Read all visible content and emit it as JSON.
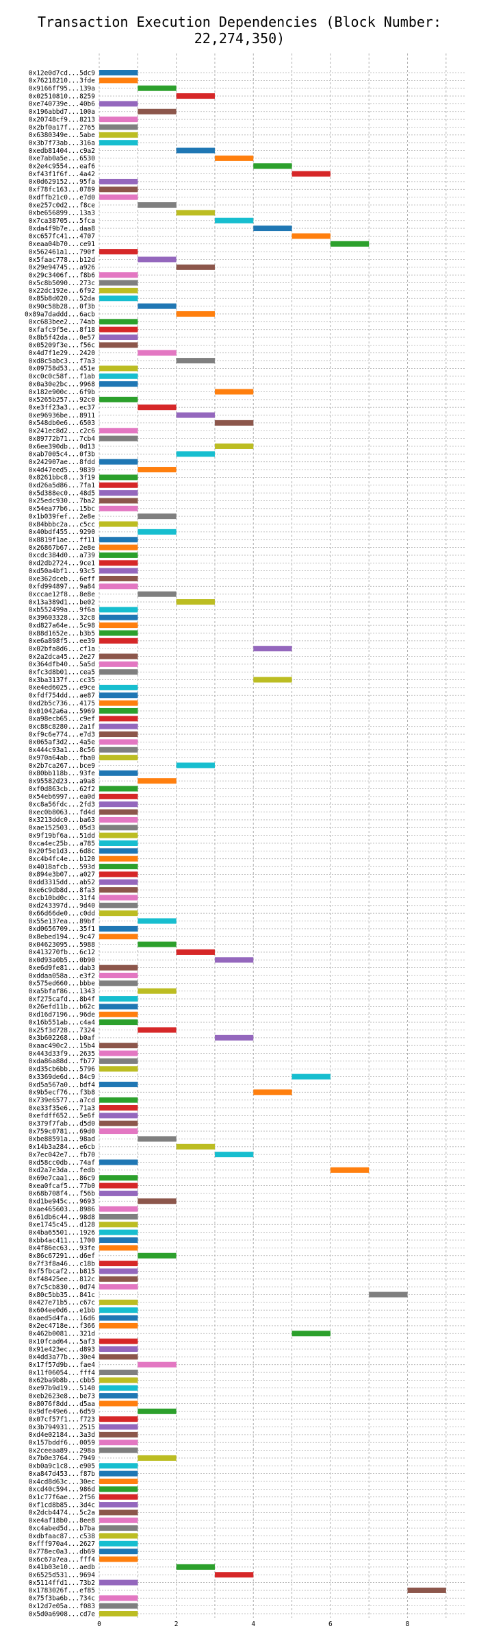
{
  "chart_data": {
    "type": "gantt",
    "title": "Transaction Execution Dependencies (Block Number: 22,274,350)",
    "xlabel": "",
    "ylabel": "",
    "xlim": [
      0,
      9.5
    ],
    "xticks": [
      0,
      2,
      4,
      6,
      8
    ],
    "grid": true,
    "bar_duration": 1,
    "palette": [
      "#1f77b4",
      "#ff7f0e",
      "#2ca02c",
      "#d62728",
      "#9467bd",
      "#8c564b",
      "#e377c2",
      "#7f7f7f",
      "#bcbd22",
      "#17becf"
    ],
    "transactions": [
      {
        "label": "0x12e0d7cd...5dc9",
        "start": 0
      },
      {
        "label": "0x76218210...3fde",
        "start": 0
      },
      {
        "label": "0x9166ff95...139a",
        "start": 1
      },
      {
        "label": "0x02510810...8259",
        "start": 2
      },
      {
        "label": "0xe740739e...40b6",
        "start": 0
      },
      {
        "label": "0x196abbd7...100a",
        "start": 1
      },
      {
        "label": "0x20748cf9...8213",
        "start": 0
      },
      {
        "label": "0x2bf0a17f...2765",
        "start": 0
      },
      {
        "label": "0x6380349e...5abe",
        "start": 0
      },
      {
        "label": "0x3b7f73ab...316a",
        "start": 0
      },
      {
        "label": "0xedb81404...c9a2",
        "start": 2
      },
      {
        "label": "0xe7ab0a5e...6530",
        "start": 3
      },
      {
        "label": "0x2e4c9554...eaf6",
        "start": 4
      },
      {
        "label": "0xf43f1f6f...4a42",
        "start": 5
      },
      {
        "label": "0x0d629152...95fa",
        "start": 0
      },
      {
        "label": "0xf78fc163...0789",
        "start": 0
      },
      {
        "label": "0xdffb21c0...e7d0",
        "start": 0
      },
      {
        "label": "0xe257c0d2...f8ce",
        "start": 1
      },
      {
        "label": "0xbe656899...13a3",
        "start": 2
      },
      {
        "label": "0x7ca38705...5fca",
        "start": 3
      },
      {
        "label": "0xda4f9b7e...daa8",
        "start": 4
      },
      {
        "label": "0xc657fc41...4707",
        "start": 5
      },
      {
        "label": "0xeaa04b70...ce91",
        "start": 6
      },
      {
        "label": "0x562461a1...790f",
        "start": 0
      },
      {
        "label": "0x5faac778...b12d",
        "start": 1
      },
      {
        "label": "0x29e94745...a926",
        "start": 2
      },
      {
        "label": "0x29c3406f...f8b6",
        "start": 0
      },
      {
        "label": "0x5c8b5090...273c",
        "start": 0
      },
      {
        "label": "0x22dc192e...6f92",
        "start": 0
      },
      {
        "label": "0x85b8d020...52da",
        "start": 0
      },
      {
        "label": "0x90c58b28...0f3b",
        "start": 1
      },
      {
        "label": "0x89a7daddd...6acb",
        "start": 2
      },
      {
        "label": "0xc683bee2...74ab",
        "start": 0
      },
      {
        "label": "0xfafc9f5e...8f18",
        "start": 0
      },
      {
        "label": "0x8b5f42da...0e57",
        "start": 0
      },
      {
        "label": "0x05209f3e...f56c",
        "start": 0
      },
      {
        "label": "0x4d7f1e29...2420",
        "start": 1
      },
      {
        "label": "0xd8c5abc3...f7a3",
        "start": 2
      },
      {
        "label": "0x09758d53...451e",
        "start": 0
      },
      {
        "label": "0xc0c0c58f...f1ab",
        "start": 0
      },
      {
        "label": "0x0a30e2bc...9968",
        "start": 0
      },
      {
        "label": "0x182e900c...6f9b",
        "start": 3
      },
      {
        "label": "0x5265b257...92c0",
        "start": 0
      },
      {
        "label": "0xe3ff23a3...ec37",
        "start": 1
      },
      {
        "label": "0xe96936be...8911",
        "start": 2
      },
      {
        "label": "0x548db0e6...6503",
        "start": 3
      },
      {
        "label": "0x241ec8d2...c2c6",
        "start": 0
      },
      {
        "label": "0x89772b71...7cb4",
        "start": 0
      },
      {
        "label": "0x6ee390db...0d13",
        "start": 3
      },
      {
        "label": "0xab7005c4...0f3b",
        "start": 2
      },
      {
        "label": "0x242907ae...8fdd",
        "start": 0
      },
      {
        "label": "0x4d47eed5...9839",
        "start": 1
      },
      {
        "label": "0x8261bbc8...3f19",
        "start": 0
      },
      {
        "label": "0xd26a5d86...7fa1",
        "start": 0
      },
      {
        "label": "0x5d388ec0...48d5",
        "start": 0
      },
      {
        "label": "0x25edc930...7ba2",
        "start": 0
      },
      {
        "label": "0x54ea77b6...15bc",
        "start": 0
      },
      {
        "label": "0x1b039fef...2e8e",
        "start": 1
      },
      {
        "label": "0x84bbbc2a...c5cc",
        "start": 0
      },
      {
        "label": "0x40bdf455...9290",
        "start": 1
      },
      {
        "label": "0x8819f1ae...ff11",
        "start": 0
      },
      {
        "label": "0x26867b67...2e8e",
        "start": 0
      },
      {
        "label": "0xcdc384d0...a739",
        "start": 0
      },
      {
        "label": "0xd2db2724...9ce1",
        "start": 0
      },
      {
        "label": "0xd50a4bf1...93c5",
        "start": 0
      },
      {
        "label": "0xe362dceb...6eff",
        "start": 0
      },
      {
        "label": "0xfd994897...9a84",
        "start": 0
      },
      {
        "label": "0xccae12f8...8e8e",
        "start": 1
      },
      {
        "label": "0x13a389d1...be02",
        "start": 2
      },
      {
        "label": "0xb552499a...9f6a",
        "start": 0
      },
      {
        "label": "0x39603328...32c8",
        "start": 0
      },
      {
        "label": "0xd827a64e...5c98",
        "start": 0
      },
      {
        "label": "0x88d1652e...b3b5",
        "start": 0
      },
      {
        "label": "0xe6a898f5...ee39",
        "start": 0
      },
      {
        "label": "0x02bfa8d6...cf1a",
        "start": 4
      },
      {
        "label": "0x2a2dca45...2e27",
        "start": 0
      },
      {
        "label": "0x364dfb40...5a5d",
        "start": 0
      },
      {
        "label": "0xfc3d8b01...cea5",
        "start": 0
      },
      {
        "label": "0x3ba3137f...cc35",
        "start": 4
      },
      {
        "label": "0xe4ed6025...e9ce",
        "start": 0
      },
      {
        "label": "0xfdf754dd...ae87",
        "start": 0
      },
      {
        "label": "0xd2b5c736...4175",
        "start": 0
      },
      {
        "label": "0x01042a6a...5969",
        "start": 0
      },
      {
        "label": "0xa98ecb65...c9ef",
        "start": 0
      },
      {
        "label": "0xc88c8280...2a1f",
        "start": 0
      },
      {
        "label": "0xf9c6e774...e7d3",
        "start": 0
      },
      {
        "label": "0x065af3d2...4a5e",
        "start": 0
      },
      {
        "label": "0x444c93a1...8c56",
        "start": 0
      },
      {
        "label": "0x970a64ab...fba0",
        "start": 0
      },
      {
        "label": "0x2b7ca267...bce9",
        "start": 2
      },
      {
        "label": "0x80bb118b...93fe",
        "start": 0
      },
      {
        "label": "0x95582d23...a9a8",
        "start": 1
      },
      {
        "label": "0xf0d863cb...62f2",
        "start": 0
      },
      {
        "label": "0x54eb6997...ea0d",
        "start": 0
      },
      {
        "label": "0xc8a56fdc...2fd3",
        "start": 0
      },
      {
        "label": "0xec0b8063...fd4d",
        "start": 0
      },
      {
        "label": "0x3213ddc0...ba63",
        "start": 0
      },
      {
        "label": "0xae152503...05d3",
        "start": 0
      },
      {
        "label": "0x9f19bf6a...51dd",
        "start": 0
      },
      {
        "label": "0xca4ec25b...a785",
        "start": 0
      },
      {
        "label": "0x20f5e1d3...6d8c",
        "start": 0
      },
      {
        "label": "0xc4b4fc4e...b120",
        "start": 0
      },
      {
        "label": "0x4018afcb...593d",
        "start": 0
      },
      {
        "label": "0x894e3b07...a027",
        "start": 0
      },
      {
        "label": "0xdd3315dd...ab52",
        "start": 0
      },
      {
        "label": "0xe6c9db8d...8fa3",
        "start": 0
      },
      {
        "label": "0xcb10bd0c...31f4",
        "start": 0
      },
      {
        "label": "0xd243397d...9d40",
        "start": 0
      },
      {
        "label": "0x66d66de0...c0dd",
        "start": 0
      },
      {
        "label": "0x55e137ea...89bf",
        "start": 1
      },
      {
        "label": "0xd0656709...35f1",
        "start": 0
      },
      {
        "label": "0x8ebed194...9c47",
        "start": 0
      },
      {
        "label": "0x04623095...5988",
        "start": 1
      },
      {
        "label": "0x413270fb...6c12",
        "start": 2
      },
      {
        "label": "0x0d93a0b5...0b90",
        "start": 3
      },
      {
        "label": "0xe6d9fe81...dab3",
        "start": 0
      },
      {
        "label": "0xddaa058a...e3f2",
        "start": 0
      },
      {
        "label": "0x575ed660...bbbe",
        "start": 0
      },
      {
        "label": "0xa5bfaf86...1343",
        "start": 1
      },
      {
        "label": "0xf275cafd...8b4f",
        "start": 0
      },
      {
        "label": "0x26efd11b...b62c",
        "start": 0
      },
      {
        "label": "0xd16d7196...96de",
        "start": 0
      },
      {
        "label": "0x16b551ab...c4a4",
        "start": 0
      },
      {
        "label": "0x25f3d728...7324",
        "start": 1
      },
      {
        "label": "0x3b602268...b0af",
        "start": 3
      },
      {
        "label": "0xaac490c2...15b4",
        "start": 0
      },
      {
        "label": "0x443d33f9...2635",
        "start": 0
      },
      {
        "label": "0xda86a88d...fb77",
        "start": 0
      },
      {
        "label": "0xd35cb6bb...5796",
        "start": 0
      },
      {
        "label": "0x3369de6d...84c9",
        "start": 5
      },
      {
        "label": "0xd5a567a0...bdf4",
        "start": 0
      },
      {
        "label": "0x9b5ecf76...f3b8",
        "start": 4
      },
      {
        "label": "0x739e6577...a7cd",
        "start": 0
      },
      {
        "label": "0xe33f35e6...71a3",
        "start": 0
      },
      {
        "label": "0xefdff652...5e6f",
        "start": 0
      },
      {
        "label": "0x379f7fab...d5d0",
        "start": 0
      },
      {
        "label": "0x759c0781...69d0",
        "start": 0
      },
      {
        "label": "0xbe88591a...98ad",
        "start": 1
      },
      {
        "label": "0x14b3a284...e6cb",
        "start": 2
      },
      {
        "label": "0x7ec042e7...fb70",
        "start": 3
      },
      {
        "label": "0xd58cc0db...74af",
        "start": 0
      },
      {
        "label": "0xd2a7e3da...fedb",
        "start": 6
      },
      {
        "label": "0x69e7caa1...86c9",
        "start": 0
      },
      {
        "label": "0xea0fcaf5...77b0",
        "start": 0
      },
      {
        "label": "0x68b708f4...f56b",
        "start": 0
      },
      {
        "label": "0xd1be945c...9693",
        "start": 1
      },
      {
        "label": "0xae465603...8986",
        "start": 0
      },
      {
        "label": "0x61db6c44...98d8",
        "start": 0
      },
      {
        "label": "0xe1745c45...d128",
        "start": 0
      },
      {
        "label": "0x4ba65501...1926",
        "start": 0
      },
      {
        "label": "0xbb4ac411...1700",
        "start": 0
      },
      {
        "label": "0x4f86ec63...93fe",
        "start": 0
      },
      {
        "label": "0x86c67291...d6ef",
        "start": 1
      },
      {
        "label": "0x7f3f8a46...c18b",
        "start": 0
      },
      {
        "label": "0xf5fbcaf2...b815",
        "start": 0
      },
      {
        "label": "0xf48425ee...812c",
        "start": 0
      },
      {
        "label": "0x7c5cb830...0d74",
        "start": 0
      },
      {
        "label": "0x80c5bb35...841c",
        "start": 7
      },
      {
        "label": "0x427e71b5...c67c",
        "start": 0
      },
      {
        "label": "0x604ee0d6...e1bb",
        "start": 0
      },
      {
        "label": "0xaed5d4fa...16d6",
        "start": 0
      },
      {
        "label": "0x2ec4718e...f366",
        "start": 0
      },
      {
        "label": "0x462b0081...321d",
        "start": 5
      },
      {
        "label": "0x10fcad64...5af3",
        "start": 0
      },
      {
        "label": "0x91e423ec...d893",
        "start": 0
      },
      {
        "label": "0x4dd3a77b...30e4",
        "start": 0
      },
      {
        "label": "0x17f57d9b...fae4",
        "start": 1
      },
      {
        "label": "0x11f06054...fff4",
        "start": 0
      },
      {
        "label": "0x62ba9b8b...cbb5",
        "start": 0
      },
      {
        "label": "0xe97b9d19...5140",
        "start": 0
      },
      {
        "label": "0xeb2623e8...be73",
        "start": 0
      },
      {
        "label": "0x8076f8dd...d5aa",
        "start": 0
      },
      {
        "label": "0x9dfe49e6...6d59",
        "start": 1
      },
      {
        "label": "0x07cf57f1...f723",
        "start": 0
      },
      {
        "label": "0x3b794931...2515",
        "start": 0
      },
      {
        "label": "0xd4e02184...3a3d",
        "start": 0
      },
      {
        "label": "0x157bddf6...0059",
        "start": 0
      },
      {
        "label": "0x2ceeaa89...298a",
        "start": 0
      },
      {
        "label": "0x7b0e3764...7949",
        "start": 1
      },
      {
        "label": "0xb0a9c1c8...e905",
        "start": 0
      },
      {
        "label": "0xa847d453...f87b",
        "start": 0
      },
      {
        "label": "0x4cd8d63c...30ec",
        "start": 0
      },
      {
        "label": "0xcd40c594...986d",
        "start": 0
      },
      {
        "label": "0x1c77f6ae...2f56",
        "start": 0
      },
      {
        "label": "0xf1cd8b85...3d4c",
        "start": 0
      },
      {
        "label": "0x2dcb4474...5c2a",
        "start": 0
      },
      {
        "label": "0xe4af18b0...8ee8",
        "start": 0
      },
      {
        "label": "0xc4abed5d...b7ba",
        "start": 0
      },
      {
        "label": "0xdbfaac87...c538",
        "start": 0
      },
      {
        "label": "0xfff970a4...2627",
        "start": 0
      },
      {
        "label": "0x778ec0a3...db69",
        "start": 0
      },
      {
        "label": "0x6c67a7ea...fff4",
        "start": 0
      },
      {
        "label": "0x41b03e10...aedb",
        "start": 2
      },
      {
        "label": "0x6525d531...9694",
        "start": 3
      },
      {
        "label": "0x5114ffd1...73b2",
        "start": 0
      },
      {
        "label": "0x1783026f...ef85",
        "start": 8
      },
      {
        "label": "0x75f3ba6b...734c",
        "start": 0
      },
      {
        "label": "0x12d7e05a...f083",
        "start": 0
      },
      {
        "label": "0x5d0a6908...cd7e",
        "start": 0
      }
    ]
  }
}
